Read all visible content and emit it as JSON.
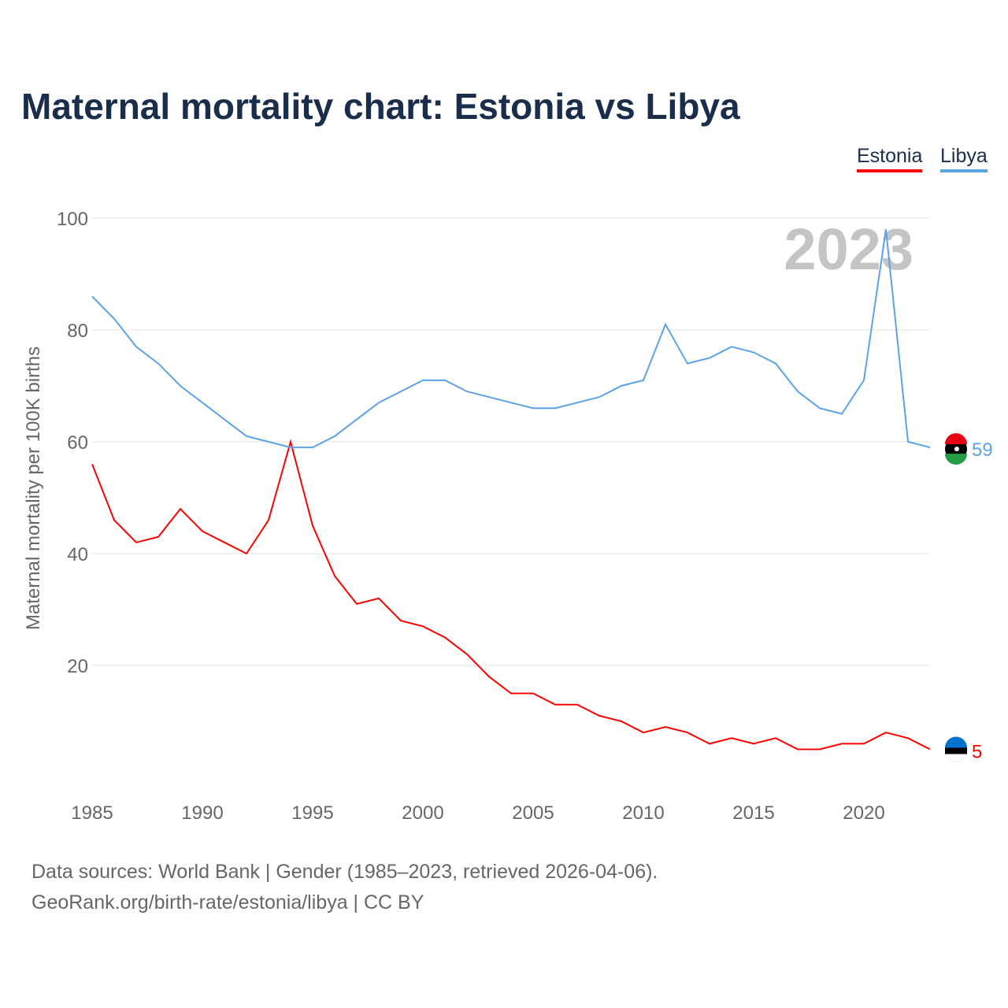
{
  "title": "Maternal mortality chart: Estonia vs Libya",
  "legend": [
    {
      "label": "Estonia",
      "color": "#ff0000"
    },
    {
      "label": "Libya",
      "color": "#5ba3e8"
    }
  ],
  "year_label": "2023",
  "footer": {
    "line1": "Data sources: World Bank | Gender (1985–2023, retrieved 2026-04-06).",
    "line2": "GeoRank.org/birth-rate/estonia/libya | CC BY"
  },
  "chart_data": {
    "type": "line",
    "title": "Maternal mortality chart: Estonia vs Libya",
    "xlabel": "",
    "ylabel": "Maternal mortality per 100K births",
    "xlim": [
      1985,
      2023
    ],
    "ylim": [
      0,
      100
    ],
    "xticks": [
      1985,
      1990,
      1995,
      2000,
      2005,
      2010,
      2015,
      2020
    ],
    "yticks": [
      20,
      40,
      60,
      80,
      100
    ],
    "grid": true,
    "legend_position": "top-right",
    "x": [
      1985,
      1986,
      1987,
      1988,
      1989,
      1990,
      1991,
      1992,
      1993,
      1994,
      1995,
      1996,
      1997,
      1998,
      1999,
      2000,
      2001,
      2002,
      2003,
      2004,
      2005,
      2006,
      2007,
      2008,
      2009,
      2010,
      2011,
      2012,
      2013,
      2014,
      2015,
      2016,
      2017,
      2018,
      2019,
      2020,
      2021,
      2022,
      2023
    ],
    "series": [
      {
        "name": "Estonia",
        "color": "#ff0000",
        "end_label": "5",
        "values": [
          56,
          46,
          42,
          43,
          48,
          44,
          42,
          40,
          46,
          60,
          45,
          36,
          31,
          32,
          28,
          27,
          25,
          22,
          18,
          15,
          15,
          13,
          13,
          11,
          10,
          8,
          9,
          8,
          6,
          7,
          6,
          7,
          5,
          5,
          6,
          6,
          8,
          7,
          5
        ]
      },
      {
        "name": "Libya",
        "color": "#5ba3e8",
        "end_label": "59",
        "values": [
          86,
          82,
          77,
          74,
          70,
          67,
          64,
          61,
          60,
          59,
          59,
          61,
          64,
          67,
          69,
          71,
          71,
          69,
          68,
          67,
          66,
          66,
          67,
          68,
          70,
          71,
          81,
          74,
          75,
          77,
          76,
          74,
          69,
          66,
          65,
          71,
          98,
          60,
          59
        ]
      }
    ]
  }
}
